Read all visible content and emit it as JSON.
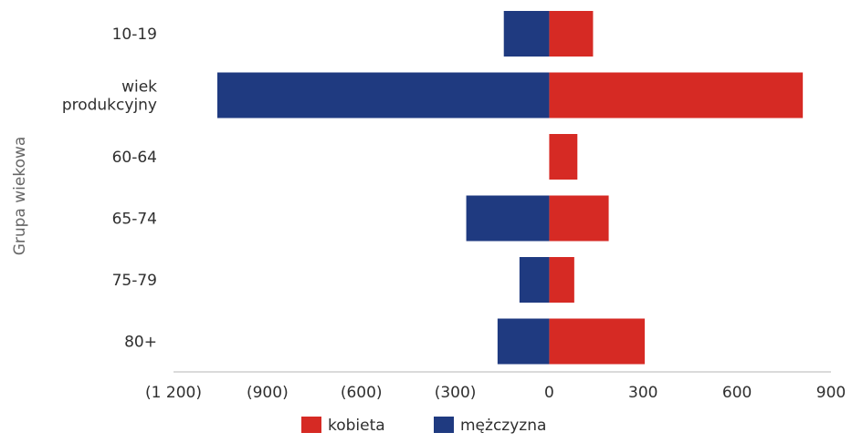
{
  "chart_data": {
    "type": "bar",
    "orientation": "horizontal",
    "layout": "diverging",
    "ylabel": "Grupa wiekowa",
    "xlabel": "",
    "categories": [
      {
        "label": "10-19",
        "lines": [
          "10-19"
        ]
      },
      {
        "label": "wiek produkcyjny",
        "lines": [
          "wiek",
          "produkcyjny"
        ]
      },
      {
        "label": "60-64",
        "lines": [
          "60-64"
        ]
      },
      {
        "label": "65-74",
        "lines": [
          "65-74"
        ]
      },
      {
        "label": "75-79",
        "lines": [
          "75-79"
        ]
      },
      {
        "label": "80+",
        "lines": [
          "80+"
        ]
      }
    ],
    "series": [
      {
        "name": "kobieta",
        "color": "#d62a24",
        "values": [
          140,
          810,
          90,
          190,
          80,
          305
        ]
      },
      {
        "name": "mężczyzna",
        "color": "#1f3a80",
        "values": [
          -145,
          -1060,
          0,
          -265,
          -95,
          -165
        ]
      }
    ],
    "xlim": [
      -1200,
      900
    ],
    "xticks": [
      {
        "value": -1200,
        "label": "(1 200)"
      },
      {
        "value": -900,
        "label": "(900)"
      },
      {
        "value": -600,
        "label": "(600)"
      },
      {
        "value": -300,
        "label": "(300)"
      },
      {
        "value": 0,
        "label": "0"
      },
      {
        "value": 300,
        "label": "300"
      },
      {
        "value": 600,
        "label": "600"
      },
      {
        "value": 900,
        "label": "900"
      }
    ],
    "legend": {
      "position": "bottom",
      "entries": [
        "kobieta",
        "mężczyzna"
      ]
    },
    "grid": false
  }
}
